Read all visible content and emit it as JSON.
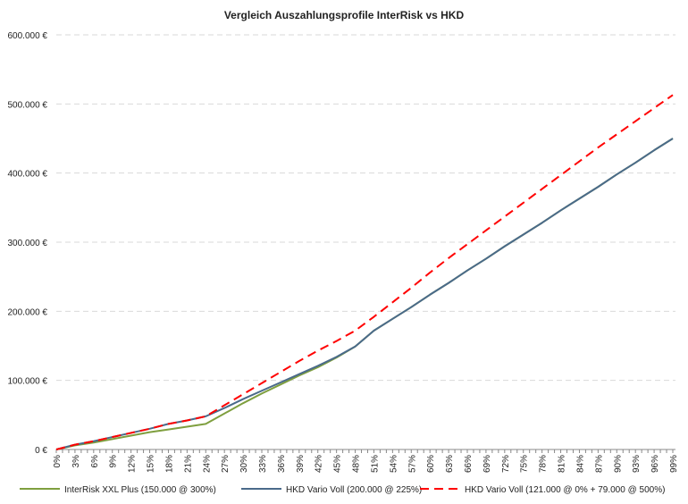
{
  "chart_data": {
    "type": "line",
    "title": "Vergleich Auszahlungsprofile InterRisk vs HKD",
    "xlabel": "",
    "ylabel": "",
    "ylim": [
      0,
      600000
    ],
    "y_ticks": [
      0,
      100000,
      200000,
      300000,
      400000,
      500000,
      600000
    ],
    "y_tick_labels": [
      "0 €",
      "100.000 €",
      "200.000 €",
      "300.000 €",
      "400.000 €",
      "500.000 €",
      "600.000 €"
    ],
    "x_tick_labels": [
      "0%",
      "3%",
      "6%",
      "9%",
      "12%",
      "15%",
      "18%",
      "21%",
      "24%",
      "27%",
      "30%",
      "33%",
      "36%",
      "39%",
      "42%",
      "45%",
      "48%",
      "51%",
      "54%",
      "57%",
      "60%",
      "63%",
      "66%",
      "69%",
      "72%",
      "75%",
      "78%",
      "81%",
      "84%",
      "87%",
      "90%",
      "93%",
      "96%",
      "99%"
    ],
    "x": [
      0,
      3,
      6,
      9,
      12,
      15,
      18,
      21,
      24,
      27,
      30,
      33,
      36,
      39,
      42,
      45,
      48,
      51,
      54,
      57,
      60,
      63,
      66,
      69,
      72,
      75,
      78,
      81,
      84,
      87,
      90,
      93,
      96,
      99
    ],
    "grid": "horizontal dashed",
    "legend_position": "bottom",
    "series": [
      {
        "name": "InterRisk XXL Plus (150.000 @ 300%)",
        "color": "#7f9f3f",
        "dash": "solid",
        "values": [
          0,
          6000,
          10000,
          15000,
          20000,
          25000,
          29000,
          33000,
          37000,
          52000,
          67000,
          81000,
          94000,
          107000,
          119000,
          133000,
          149000,
          172000,
          189000,
          206000,
          224000,
          241000,
          259000,
          276000,
          294000,
          311000,
          328000,
          346000,
          363000,
          380000,
          398000,
          415000,
          433000,
          450000
        ]
      },
      {
        "name": "HKD Vario Voll (200.000 @ 225%)",
        "color": "#4a6a8a",
        "dash": "solid",
        "values": [
          0,
          7000,
          12000,
          18000,
          24000,
          30000,
          37000,
          42000,
          48000,
          60000,
          73000,
          85000,
          97000,
          109000,
          121000,
          134000,
          149000,
          172000,
          189000,
          206000,
          224000,
          241000,
          259000,
          276000,
          294000,
          311000,
          328000,
          346000,
          363000,
          380000,
          398000,
          415000,
          433000,
          450000
        ]
      },
      {
        "name": "HKD Vario Voll (121.000 @ 0% + 79.000 @ 500%)",
        "color": "#ff0000",
        "dash": "dashed",
        "values": [
          0,
          7000,
          12000,
          18000,
          24000,
          30000,
          37000,
          42000,
          48000,
          64000,
          80000,
          96000,
          112000,
          128000,
          143000,
          157000,
          172000,
          192000,
          213000,
          234000,
          256000,
          277000,
          297000,
          317000,
          337000,
          357000,
          377000,
          397000,
          417000,
          437000,
          456000,
          475000,
          494000,
          513000
        ]
      }
    ]
  }
}
